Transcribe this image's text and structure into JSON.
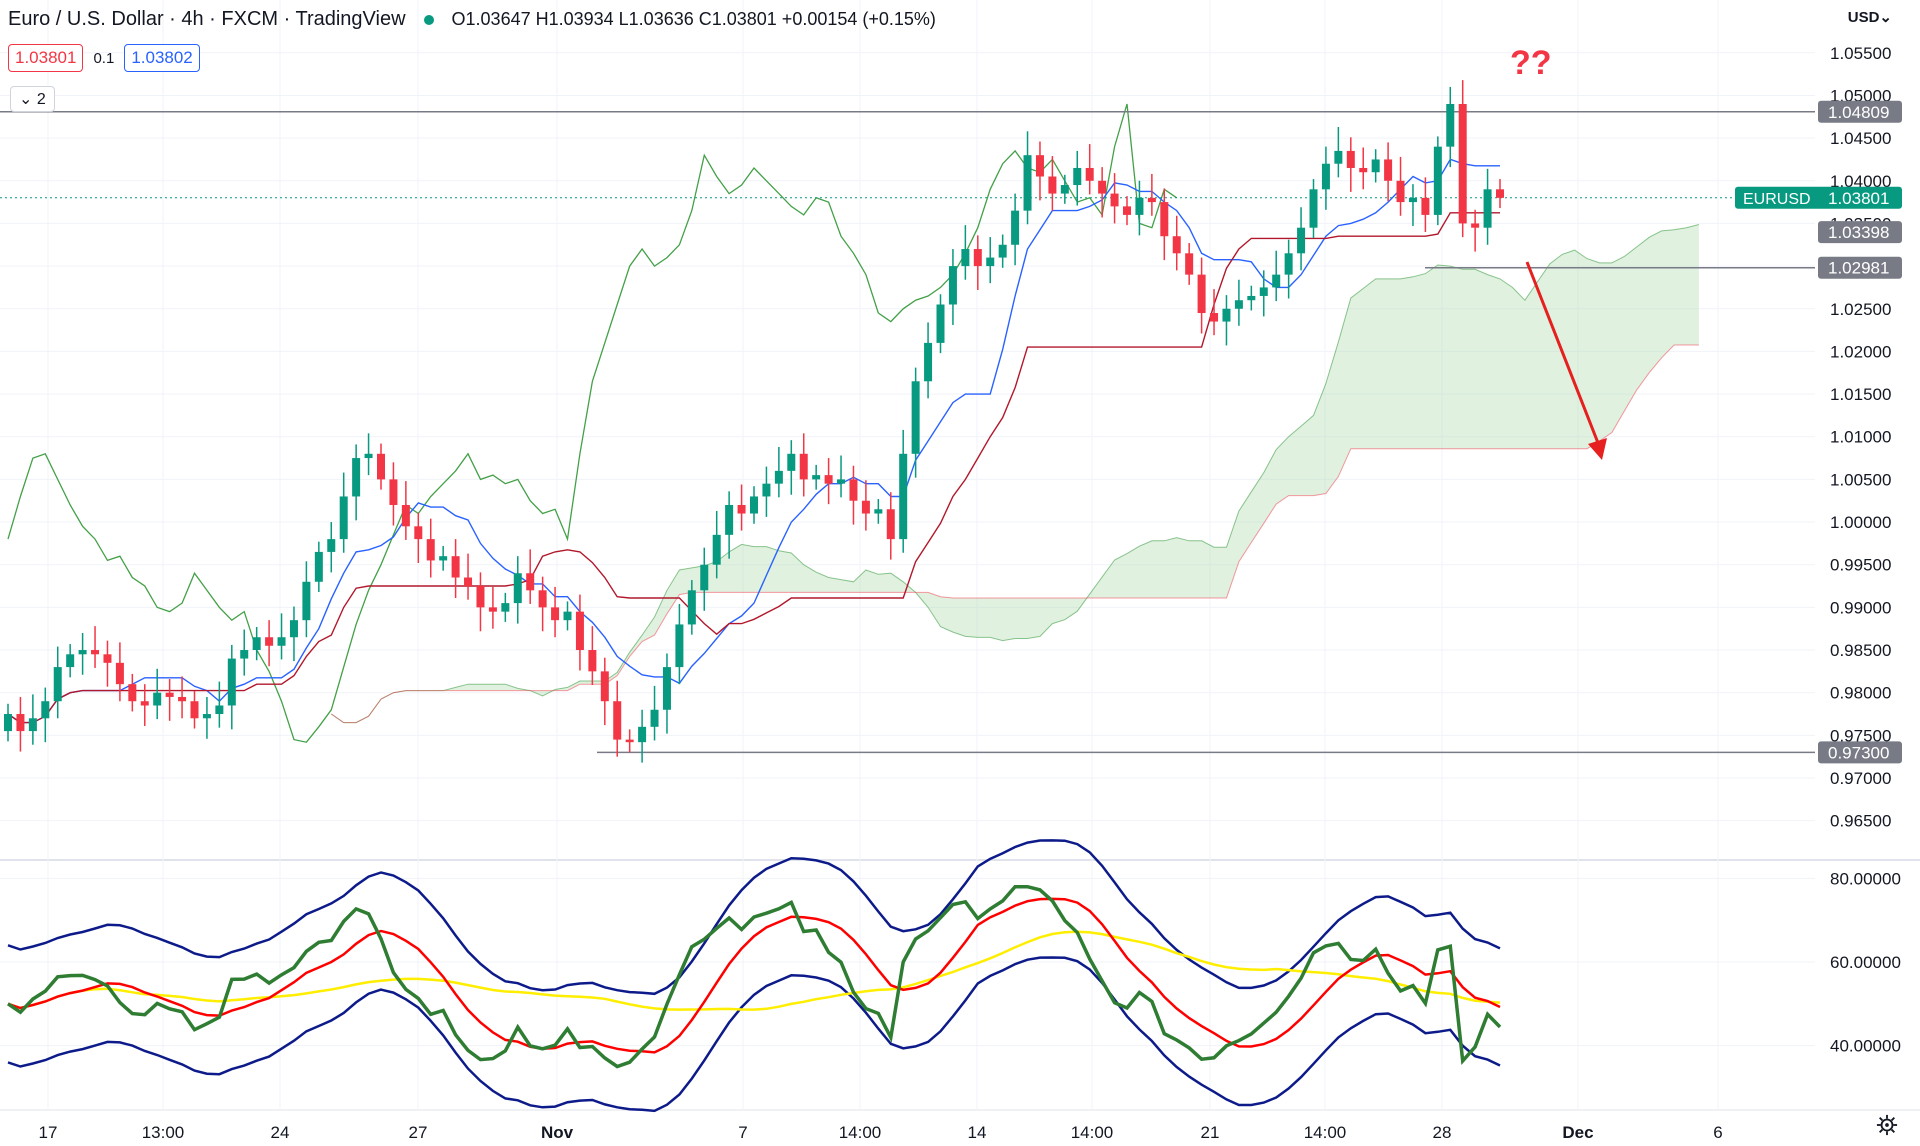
{
  "header": {
    "symbol_title": "Euro / U.S. Dollar · 4h · FXCM · TradingView",
    "ohlc": "O1.03647 H1.03934 L1.03636 C1.03801 +0.00154 (+0.15%)",
    "sell_price": "1.03801",
    "spread": "0.1",
    "buy_price": "1.03802",
    "indicator_badge": "2",
    "currency": "USD",
    "annotation": "??"
  },
  "colors": {
    "up": "#089981",
    "down": "#f23645",
    "tenkan": "#2962ff",
    "kijun": "#b2182b",
    "span_a": "#43a047",
    "cloud_green": "#a5d6a7",
    "cloud_red": "#f8bbbb",
    "rsi_green": "#2e7d32",
    "rsi_red": "#ff0000",
    "rsi_yellow": "#ffee00",
    "band_navy": "#0d1b8a",
    "arrow": "#e5201e",
    "sr_line": "#787b86"
  },
  "chart_data": {
    "type": "candlestick",
    "instrument": "EURUSD",
    "timeframe": "4h",
    "y_axis_ticks": [
      "1.05500",
      "1.05000",
      "1.04500",
      "1.04000",
      "1.03500",
      "1.03000",
      "1.02500",
      "1.02000",
      "1.01500",
      "1.01000",
      "1.00500",
      "1.00000",
      "0.99500",
      "0.99000",
      "0.98500",
      "0.98000",
      "0.97500",
      "0.97000",
      "0.96500"
    ],
    "ylim": [
      0.9625,
      1.0565
    ],
    "price_labels": [
      {
        "text": "1.04809",
        "value": 1.04809,
        "kind": "level"
      },
      {
        "text": "1.03398",
        "value": 1.03398,
        "kind": "level"
      },
      {
        "text": "1.02981",
        "value": 1.02981,
        "kind": "level"
      },
      {
        "text": "0.97300",
        "value": 0.973,
        "kind": "level"
      }
    ],
    "current_price": {
      "symbol": "EURUSD",
      "value": "1.03801"
    },
    "x_axis_ticks": [
      "17",
      "13:00",
      "24",
      "27",
      "Nov",
      "7",
      "14:00",
      "14",
      "14:00",
      "21",
      "14:00",
      "28",
      "Dec",
      "6"
    ],
    "rsi_pane": {
      "y_axis_ticks": [
        "80.00000",
        "60.00000",
        "40.00000"
      ],
      "ylim": [
        27,
        82
      ]
    },
    "close_series": [
      0.9775,
      0.9755,
      0.977,
      0.979,
      0.983,
      0.9845,
      0.985,
      0.9845,
      0.9835,
      0.981,
      0.979,
      0.9785,
      0.98,
      0.9795,
      0.979,
      0.977,
      0.9775,
      0.9785,
      0.984,
      0.985,
      0.9865,
      0.9855,
      0.9865,
      0.9885,
      0.993,
      0.9965,
      0.998,
      1.003,
      1.0075,
      1.008,
      1.005,
      1.002,
      0.9995,
      0.998,
      0.9955,
      0.996,
      0.9935,
      0.9925,
      0.99,
      0.9895,
      0.9905,
      0.994,
      0.992,
      0.99,
      0.9885,
      0.9895,
      0.985,
      0.9825,
      0.979,
      0.9745,
      0.9742,
      0.976,
      0.978,
      0.983,
      0.988,
      0.992,
      0.995,
      0.9985,
      1.002,
      1.001,
      1.003,
      1.0045,
      1.006,
      1.008,
      1.005,
      1.0055,
      1.0045,
      1.005,
      1.0025,
      1.001,
      1.0015,
      0.998,
      1.008,
      1.0165,
      1.021,
      1.0255,
      1.03,
      1.032,
      1.03,
      1.031,
      1.0325,
      1.0365,
      1.043,
      1.0405,
      1.0385,
      1.0395,
      1.0415,
      1.04,
      1.0385,
      1.037,
      1.036,
      1.038,
      1.0375,
      1.0335,
      1.0315,
      1.029,
      1.0245,
      1.0235,
      1.025,
      1.026,
      1.0265,
      1.0275,
      1.029,
      1.0315,
      1.0345,
      1.039,
      1.042,
      1.0435,
      1.0415,
      1.041,
      1.0425,
      1.04,
      1.0375,
      1.038,
      1.036,
      1.044,
      1.049,
      1.035,
      1.0345,
      1.039,
      1.038
    ],
    "indicators": [
      "Ichimoku Cloud",
      "RSI with moving average and Bollinger Bands"
    ]
  }
}
